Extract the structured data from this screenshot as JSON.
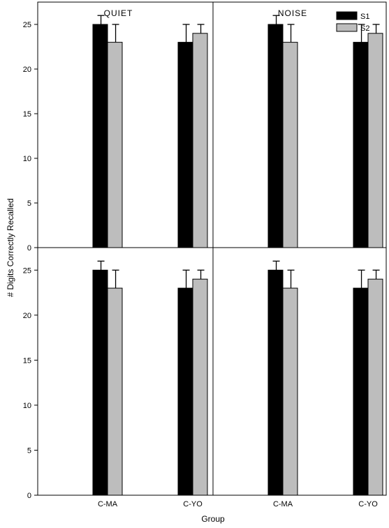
{
  "chart_data": {
    "type": "bar",
    "ylabel": "# Digits Correctly Recalled",
    "xlabel": "Group",
    "ylim": [
      0,
      27.5
    ],
    "yticks": [
      0,
      5,
      10,
      15,
      20,
      25
    ],
    "categories": [
      "C-MA",
      "C-YO"
    ],
    "series_colors": {
      "S1": "#000000",
      "S2": "#bdbdbd"
    },
    "legend": {
      "placement": "top-right",
      "entries": [
        "S1",
        "S2"
      ]
    },
    "grid": false,
    "panels": [
      {
        "title": "QUIET",
        "series": [
          {
            "name": "S1",
            "values": [
              25,
              23
            ],
            "errors": [
              1,
              2
            ]
          },
          {
            "name": "S2",
            "values": [
              23,
              24
            ],
            "errors": [
              2,
              1
            ]
          }
        ]
      },
      {
        "title": "NOISE",
        "series": [
          {
            "name": "S1",
            "values": [
              25,
              23
            ],
            "errors": [
              1,
              2
            ]
          },
          {
            "name": "S2",
            "values": [
              23,
              24
            ],
            "errors": [
              2,
              1
            ]
          }
        ]
      },
      {
        "title": "",
        "series": [
          {
            "name": "S1",
            "values": [
              25,
              23
            ],
            "errors": [
              1,
              2
            ]
          },
          {
            "name": "S2",
            "values": [
              23,
              24
            ],
            "errors": [
              2,
              1
            ]
          }
        ]
      },
      {
        "title": "",
        "series": [
          {
            "name": "S1",
            "values": [
              25,
              23
            ],
            "errors": [
              1,
              2
            ]
          },
          {
            "name": "S2",
            "values": [
              23,
              24
            ],
            "errors": [
              2,
              1
            ]
          }
        ]
      }
    ]
  }
}
